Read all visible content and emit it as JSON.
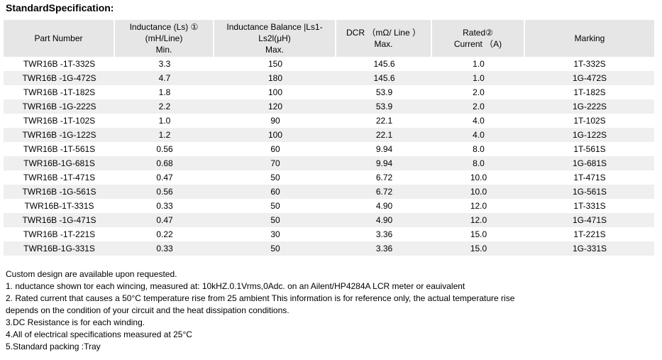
{
  "title": "StandardSpecification:",
  "table": {
    "header": [
      [
        "Part Number"
      ],
      [
        "Inductance (Ls) ①",
        "(mH/Line)",
        "Min."
      ],
      [
        "Inductance Balance |Ls1-",
        "Ls2l(μH)",
        "Max."
      ],
      [
        "DCR （mΩ/ Line ）",
        "Max."
      ],
      [
        "Rated②",
        "Current （A)"
      ],
      [
        "Marking"
      ]
    ],
    "rows": [
      [
        "TWR16B -1T-332S",
        "3.3",
        "150",
        "145.6",
        "1.0",
        "1T-332S"
      ],
      [
        "TWR16B -1G-472S",
        "4.7",
        "180",
        "145.6",
        "1.0",
        "1G-472S"
      ],
      [
        "TWR16B -1T-182S",
        "1.8",
        "100",
        "53.9",
        "2.0",
        "1T-182S"
      ],
      [
        "TWR16B -1G-222S",
        "2.2",
        "120",
        "53.9",
        "2.0",
        "1G-222S"
      ],
      [
        "TWR16B -1T-102S",
        "1.0",
        "90",
        "22.1",
        "4.0",
        "1T-102S"
      ],
      [
        "TWR16B -1G-122S",
        "1.2",
        "100",
        "22.1",
        "4.0",
        "1G-122S"
      ],
      [
        "TWR16B -1T-561S",
        "0.56",
        "60",
        "9.94",
        "8.0",
        "1T-561S"
      ],
      [
        "TWR16B-1G-681S",
        "0.68",
        "70",
        "9.94",
        "8.0",
        "1G-681S"
      ],
      [
        "TWR16B -1T-471S",
        "0.47",
        "50",
        "6.72",
        "10.0",
        "1T-471S"
      ],
      [
        "TWR16B -1G-561S",
        "0.56",
        "60",
        "6.72",
        "10.0",
        "1G-561S"
      ],
      [
        "TWR16B-1T-331S",
        "0.33",
        "50",
        "4.90",
        "12.0",
        "1T-331S"
      ],
      [
        "TWR16B -1G-471S",
        "0.47",
        "50",
        "4.90",
        "12.0",
        "1G-471S"
      ],
      [
        "TWR16B -1T-221S",
        "0.22",
        "30",
        "3.36",
        "15.0",
        "1T-221S"
      ],
      [
        "TWR16B-1G-331S",
        "0.33",
        "50",
        "3.36",
        "15.0",
        "1G-331S"
      ]
    ]
  },
  "notes": [
    "Custom design are available upon requested.",
    "1. nductance shown tor each wincing, measured at: 10kHZ.0.1Vrms,0Adc. on an Ailent/HP4284A LCR meter or eauivalent",
    "2. Rated current that causes a 50°C temperature rise from 25 ambient This information is for reference only, the actual temperature rise",
    "depends on the condition of your circuit and the heat dissipation conditions.",
    "3.DC Resistance is for each winding.",
    "4.All of electrical specifications measured at 25°C",
    "5.Standard packing :Tray"
  ]
}
